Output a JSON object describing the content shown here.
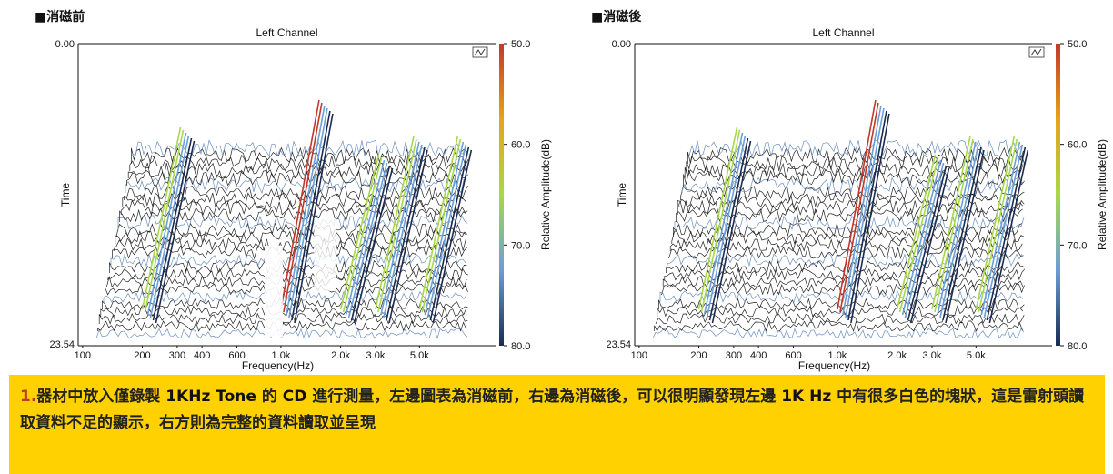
{
  "panels": [
    {
      "section_label": "■消磁前",
      "chart_data": {
        "type": "waterfall",
        "title": "Left Channel",
        "xlabel": "Frequency(Hz)",
        "ylabel": "Time",
        "colorbar_label": "Relative Amplitude(dB)",
        "x_ticks": [
          "100",
          "200",
          "300",
          "400",
          "600",
          "1.0k",
          "2.0k",
          "3.0k",
          "5.0k"
        ],
        "x_scale": "log",
        "y_ticks": [
          "0.00",
          "23.54"
        ],
        "ylim": [
          0,
          23.54
        ],
        "colorbar_ticks": [
          "50.0",
          "60.0",
          "70.0",
          "80.0"
        ],
        "colorbar_range": [
          50,
          80
        ],
        "colorbar_colors": [
          "#c0392b",
          "#e8a317",
          "#a8d84a",
          "#6a9fd8",
          "#1a2a50"
        ]
      }
    },
    {
      "section_label": "■消磁後",
      "chart_data": {
        "type": "waterfall",
        "title": "Left Channel",
        "xlabel": "Frequency(Hz)",
        "ylabel": "Time",
        "colorbar_label": "Relative Amplitude(dB)",
        "x_ticks": [
          "100",
          "200",
          "300",
          "400",
          "600",
          "1.0k",
          "2.0k",
          "3.0k",
          "5.0k"
        ],
        "x_scale": "log",
        "y_ticks": [
          "0.00",
          "23.54"
        ],
        "ylim": [
          0,
          23.54
        ],
        "colorbar_ticks": [
          "50.0",
          "60.0",
          "70.0",
          "80.0"
        ],
        "colorbar_range": [
          50,
          80
        ],
        "colorbar_colors": [
          "#c0392b",
          "#e8a317",
          "#a8d84a",
          "#6a9fd8",
          "#1a2a50"
        ]
      }
    }
  ],
  "caption": {
    "num": "1.",
    "part1": "器材中放入僅錄製 ",
    "tone": "1KHz Tone",
    "part2": " 的 ",
    "cd": "CD",
    "part3": " 進行測量，左邊圖表為消磁前，右邊為消磁後，可以很明顯發現左邊 ",
    "khz": "1K Hz",
    "part4": " 中有很多白色的塊狀，這是雷射頭讀取資料不足的顯示，右方則為完整的資料讀取並呈現"
  }
}
